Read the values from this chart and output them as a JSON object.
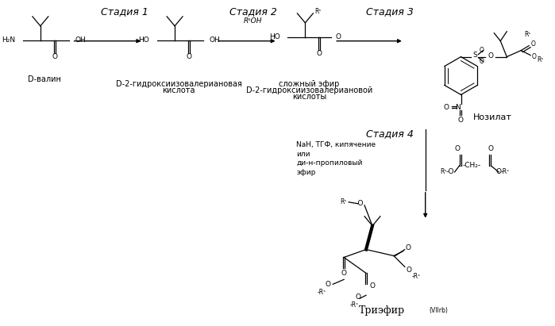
{
  "background_color": "#ffffff",
  "text_color": "#000000",
  "figure_width": 6.99,
  "figure_height": 4.11,
  "dpi": 100,
  "stage1_label": "Стадия 1",
  "stage2_label": "Стадия 2",
  "stage3_label": "Стадия 3",
  "stage4_label": "Стадия 4",
  "compound1_label": "D-валин",
  "compound2_label": "D-2-гидроксиизовалериановая\nкислота",
  "compound3_label": "сложный эфир\nD-2-гидроксиизовалериановой\nкислоты",
  "compound4_label": "Нозилат",
  "compound5_label": "Триэфир",
  "compound5_sublabel": "(VIIrb)",
  "stage4_reagents": "NaH, ТГФ, кипячение\nили\nди-н-пропиловый\nэфир",
  "stage2_reagent": "RˢOH",
  "font_size_stage": 9,
  "font_size_label": 7,
  "font_size_small": 6.5,
  "font_size_tiny": 5.5
}
